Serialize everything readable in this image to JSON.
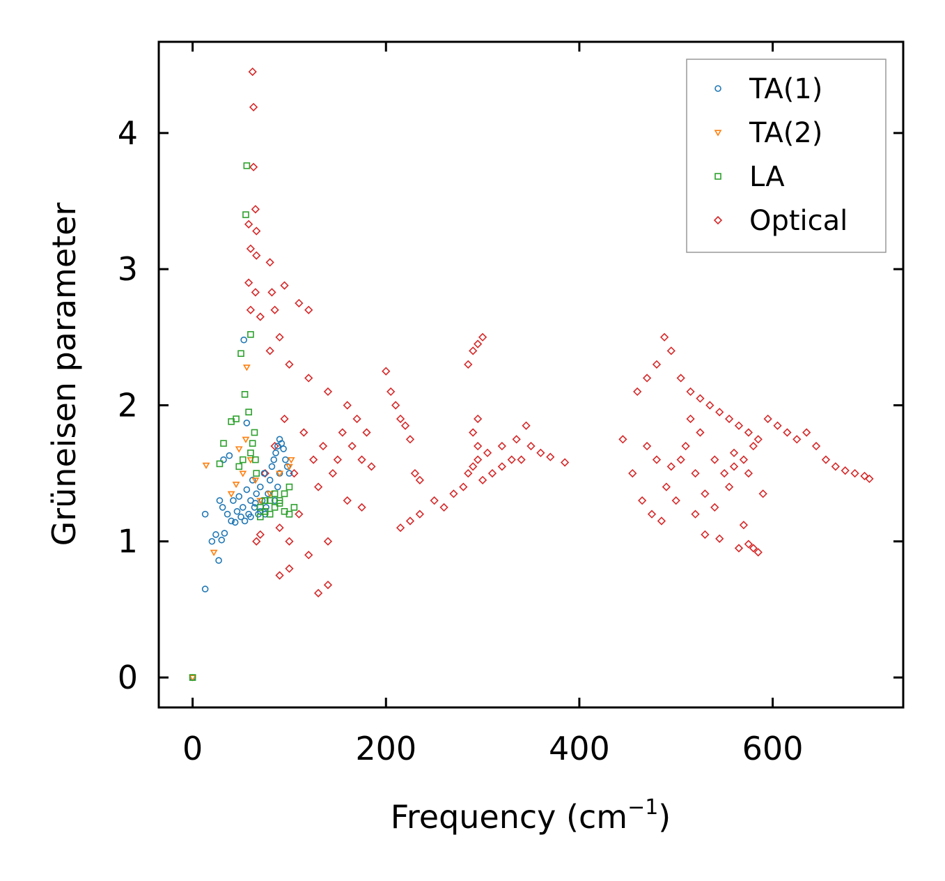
{
  "chart_data": {
    "type": "scatter",
    "xlabel": "Frequency (cm",
    "xlabel_sup": "−1",
    "xlabel_close": ")",
    "ylabel": "Grüneisen parameter",
    "xlim": [
      -35,
      735
    ],
    "ylim": [
      -0.22,
      4.67
    ],
    "xticks": [
      0,
      200,
      400,
      600
    ],
    "xtick_labels": [
      "0",
      "200",
      "400",
      "600"
    ],
    "yticks": [
      0,
      1,
      2,
      3,
      4
    ],
    "ytick_labels": [
      "0",
      "1",
      "2",
      "3",
      "4"
    ],
    "grid": false,
    "legend_position": "top-right",
    "series": [
      {
        "name": "TA(1)",
        "marker": "circle",
        "color": "#1f77b4",
        "points": [
          [
            0,
            0
          ],
          [
            13,
            0.65
          ],
          [
            13,
            1.2
          ],
          [
            20,
            1.0
          ],
          [
            24,
            1.05
          ],
          [
            27,
            0.86
          ],
          [
            28,
            1.3
          ],
          [
            30,
            1.01
          ],
          [
            31,
            1.25
          ],
          [
            32,
            1.6
          ],
          [
            33,
            1.06
          ],
          [
            36,
            1.2
          ],
          [
            38,
            1.63
          ],
          [
            40,
            1.15
          ],
          [
            42,
            1.3
          ],
          [
            44,
            1.14
          ],
          [
            46,
            1.22
          ],
          [
            48,
            1.33
          ],
          [
            50,
            1.18
          ],
          [
            52,
            1.25
          ],
          [
            53,
            2.48
          ],
          [
            54,
            1.15
          ],
          [
            56,
            1.87
          ],
          [
            56,
            1.38
          ],
          [
            58,
            1.2
          ],
          [
            60,
            1.3
          ],
          [
            62,
            1.45
          ],
          [
            64,
            1.25
          ],
          [
            66,
            1.35
          ],
          [
            68,
            1.2
          ],
          [
            70,
            1.4
          ],
          [
            72,
            1.3
          ],
          [
            74,
            1.5
          ],
          [
            76,
            1.25
          ],
          [
            78,
            1.35
          ],
          [
            80,
            1.45
          ],
          [
            82,
            1.55
          ],
          [
            84,
            1.6
          ],
          [
            86,
            1.65
          ],
          [
            88,
            1.7
          ],
          [
            90,
            1.75
          ],
          [
            92,
            1.72
          ],
          [
            94,
            1.68
          ],
          [
            96,
            1.6
          ],
          [
            98,
            1.55
          ],
          [
            100,
            1.5
          ],
          [
            85,
            1.3
          ],
          [
            88,
            1.4
          ],
          [
            90,
            1.5
          ],
          [
            75,
            1.2
          ],
          [
            70,
            1.22
          ],
          [
            65,
            1.28
          ],
          [
            60,
            1.18
          ]
        ]
      },
      {
        "name": "TA(2)",
        "marker": "triangle-down",
        "color": "#ff7f0e",
        "points": [
          [
            0,
            0
          ],
          [
            14,
            1.56
          ],
          [
            22,
            0.92
          ],
          [
            40,
            1.35
          ],
          [
            45,
            1.42
          ],
          [
            48,
            1.68
          ],
          [
            52,
            1.5
          ],
          [
            55,
            1.75
          ],
          [
            56,
            2.28
          ],
          [
            60,
            1.6
          ],
          [
            65,
            1.45
          ],
          [
            70,
            1.3
          ],
          [
            80,
            1.35
          ],
          [
            90,
            1.5
          ],
          [
            100,
            1.55
          ],
          [
            102,
            1.6
          ]
        ]
      },
      {
        "name": "LA",
        "marker": "square",
        "color": "#2ca02c",
        "points": [
          [
            0,
            0
          ],
          [
            28,
            1.57
          ],
          [
            32,
            1.72
          ],
          [
            40,
            1.88
          ],
          [
            45,
            1.9
          ],
          [
            48,
            1.55
          ],
          [
            50,
            2.38
          ],
          [
            52,
            1.6
          ],
          [
            54,
            2.08
          ],
          [
            55,
            3.4
          ],
          [
            56,
            3.76
          ],
          [
            58,
            1.95
          ],
          [
            60,
            2.52
          ],
          [
            62,
            1.72
          ],
          [
            64,
            1.8
          ],
          [
            66,
            1.5
          ],
          [
            70,
            1.25
          ],
          [
            75,
            1.3
          ],
          [
            80,
            1.2
          ],
          [
            85,
            1.25
          ],
          [
            90,
            1.3
          ],
          [
            95,
            1.35
          ],
          [
            100,
            1.4
          ],
          [
            105,
            1.25
          ],
          [
            100,
            1.2
          ],
          [
            95,
            1.22
          ],
          [
            90,
            1.28
          ],
          [
            85,
            1.35
          ],
          [
            80,
            1.3
          ],
          [
            75,
            1.22
          ],
          [
            70,
            1.18
          ],
          [
            65,
            1.6
          ],
          [
            60,
            1.65
          ]
        ]
      },
      {
        "name": "Optical",
        "marker": "diamond",
        "color": "#d62728",
        "points": [
          [
            62,
            4.45
          ],
          [
            63,
            4.19
          ],
          [
            63,
            3.75
          ],
          [
            65,
            3.44
          ],
          [
            58,
            3.33
          ],
          [
            66,
            3.28
          ],
          [
            60,
            3.15
          ],
          [
            66,
            3.1
          ],
          [
            80,
            3.05
          ],
          [
            58,
            2.9
          ],
          [
            65,
            2.83
          ],
          [
            95,
            2.88
          ],
          [
            82,
            2.83
          ],
          [
            85,
            2.7
          ],
          [
            60,
            2.7
          ],
          [
            70,
            2.65
          ],
          [
            110,
            2.75
          ],
          [
            120,
            2.7
          ],
          [
            66,
            1.0
          ],
          [
            70,
            1.05
          ],
          [
            90,
            0.75
          ],
          [
            100,
            0.8
          ],
          [
            130,
            0.62
          ],
          [
            140,
            0.68
          ],
          [
            75,
            1.5
          ],
          [
            80,
            2.4
          ],
          [
            90,
            2.5
          ],
          [
            100,
            2.3
          ],
          [
            120,
            2.2
          ],
          [
            140,
            2.1
          ],
          [
            160,
            2.0
          ],
          [
            170,
            1.9
          ],
          [
            180,
            1.8
          ],
          [
            150,
            1.6
          ],
          [
            130,
            1.4
          ],
          [
            110,
            1.2
          ],
          [
            90,
            1.1
          ],
          [
            100,
            1.0
          ],
          [
            120,
            0.9
          ],
          [
            140,
            1.0
          ],
          [
            160,
            1.3
          ],
          [
            175,
            1.25
          ],
          [
            85,
            1.7
          ],
          [
            95,
            1.9
          ],
          [
            105,
            1.5
          ],
          [
            115,
            1.8
          ],
          [
            125,
            1.6
          ],
          [
            135,
            1.7
          ],
          [
            145,
            1.5
          ],
          [
            155,
            1.8
          ],
          [
            165,
            1.7
          ],
          [
            175,
            1.6
          ],
          [
            185,
            1.55
          ],
          [
            200,
            2.25
          ],
          [
            205,
            2.1
          ],
          [
            210,
            2.0
          ],
          [
            215,
            1.9
          ],
          [
            220,
            1.85
          ],
          [
            225,
            1.75
          ],
          [
            230,
            1.5
          ],
          [
            235,
            1.45
          ],
          [
            215,
            1.1
          ],
          [
            225,
            1.15
          ],
          [
            235,
            1.2
          ],
          [
            250,
            1.3
          ],
          [
            260,
            1.25
          ],
          [
            270,
            1.35
          ],
          [
            280,
            1.4
          ],
          [
            285,
            1.5
          ],
          [
            290,
            1.55
          ],
          [
            295,
            1.6
          ],
          [
            285,
            2.3
          ],
          [
            290,
            2.4
          ],
          [
            295,
            2.45
          ],
          [
            300,
            2.5
          ],
          [
            295,
            1.9
          ],
          [
            290,
            1.8
          ],
          [
            295,
            1.7
          ],
          [
            305,
            1.65
          ],
          [
            320,
            1.7
          ],
          [
            335,
            1.75
          ],
          [
            345,
            1.85
          ],
          [
            350,
            1.7
          ],
          [
            360,
            1.65
          ],
          [
            370,
            1.62
          ],
          [
            385,
            1.58
          ],
          [
            300,
            1.45
          ],
          [
            310,
            1.5
          ],
          [
            320,
            1.55
          ],
          [
            330,
            1.6
          ],
          [
            340,
            1.6
          ],
          [
            445,
            1.75
          ],
          [
            455,
            1.5
          ],
          [
            465,
            1.3
          ],
          [
            475,
            1.2
          ],
          [
            485,
            1.15
          ],
          [
            460,
            2.1
          ],
          [
            470,
            2.2
          ],
          [
            480,
            2.3
          ],
          [
            488,
            2.5
          ],
          [
            495,
            2.4
          ],
          [
            505,
            2.2
          ],
          [
            515,
            2.1
          ],
          [
            525,
            2.05
          ],
          [
            535,
            2.0
          ],
          [
            545,
            1.95
          ],
          [
            555,
            1.9
          ],
          [
            565,
            1.85
          ],
          [
            575,
            1.8
          ],
          [
            585,
            1.75
          ],
          [
            595,
            1.9
          ],
          [
            605,
            1.85
          ],
          [
            615,
            1.8
          ],
          [
            625,
            1.75
          ],
          [
            635,
            1.8
          ],
          [
            645,
            1.7
          ],
          [
            655,
            1.6
          ],
          [
            665,
            1.55
          ],
          [
            675,
            1.52
          ],
          [
            685,
            1.5
          ],
          [
            695,
            1.48
          ],
          [
            700,
            1.46
          ],
          [
            470,
            1.7
          ],
          [
            480,
            1.6
          ],
          [
            490,
            1.4
          ],
          [
            500,
            1.3
          ],
          [
            510,
            1.7
          ],
          [
            520,
            1.5
          ],
          [
            530,
            1.35
          ],
          [
            540,
            1.25
          ],
          [
            550,
            1.5
          ],
          [
            560,
            1.65
          ],
          [
            570,
            1.6
          ],
          [
            580,
            1.7
          ],
          [
            590,
            1.35
          ],
          [
            520,
            1.2
          ],
          [
            530,
            1.05
          ],
          [
            545,
            1.02
          ],
          [
            570,
            1.12
          ],
          [
            575,
            0.98
          ],
          [
            580,
            0.95
          ],
          [
            585,
            0.92
          ],
          [
            565,
            0.95
          ],
          [
            505,
            1.6
          ],
          [
            495,
            1.55
          ],
          [
            515,
            1.9
          ],
          [
            525,
            1.8
          ],
          [
            540,
            1.6
          ],
          [
            555,
            1.4
          ],
          [
            560,
            1.55
          ],
          [
            575,
            1.5
          ]
        ]
      }
    ]
  }
}
